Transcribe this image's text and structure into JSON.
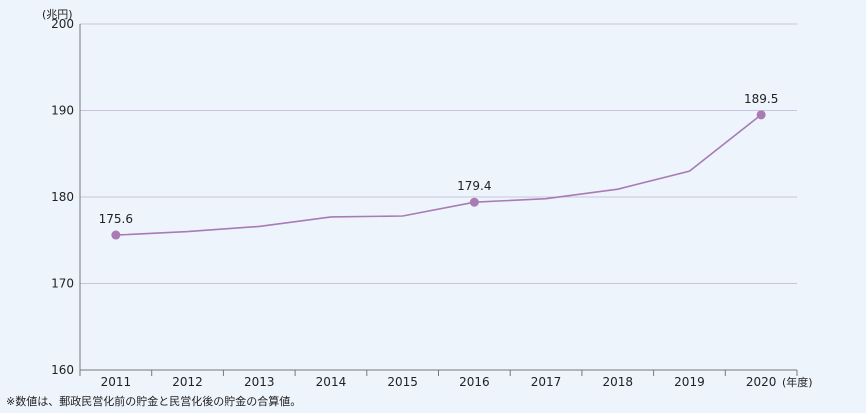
{
  "chart_data": {
    "type": "line",
    "title": "",
    "ylabel": "(兆円)",
    "xlabel": "(年度)",
    "x": [
      "2011",
      "2012",
      "2013",
      "2014",
      "2015",
      "2016",
      "2017",
      "2018",
      "2019",
      "2020"
    ],
    "series": [
      {
        "values": [
          175.6,
          176.0,
          176.6,
          177.7,
          177.8,
          179.4,
          179.8,
          180.9,
          183.0,
          189.5
        ]
      }
    ],
    "marked_points": [
      {
        "index": 0,
        "label": "175.6"
      },
      {
        "index": 5,
        "label": "179.4"
      },
      {
        "index": 9,
        "label": "189.5"
      }
    ],
    "ylim": [
      160,
      200
    ],
    "yticks": [
      "160",
      "170",
      "180",
      "190",
      "200"
    ],
    "grid": true,
    "line_color": "#a87bb4",
    "grid_color": "#c9c3dd"
  },
  "note": "※数値は、郵政民営化前の貯金と民営化後の貯金の合算値。"
}
